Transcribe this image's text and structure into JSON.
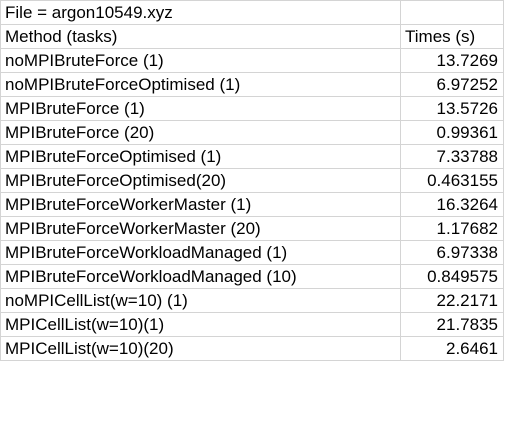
{
  "sheet": {
    "file_label": "File = argon10549.xyz",
    "file_value": "",
    "header": {
      "method": "Method (tasks)",
      "times": "Times (s)"
    },
    "rows": [
      {
        "method": "noMPIBruteForce (1)",
        "time": "13.7269"
      },
      {
        "method": "noMPIBruteForceOptimised (1)",
        "time": "6.97252"
      },
      {
        "method": "MPIBruteForce (1)",
        "time": "13.5726"
      },
      {
        "method": "MPIBruteForce (20)",
        "time": "0.99361"
      },
      {
        "method": "MPIBruteForceOptimised (1)",
        "time": "7.33788"
      },
      {
        "method": "MPIBruteForceOptimised(20)",
        "time": "0.463155"
      },
      {
        "method": "MPIBruteForceWorkerMaster (1)",
        "time": "16.3264"
      },
      {
        "method": "MPIBruteForceWorkerMaster (20)",
        "time": "1.17682"
      },
      {
        "method": "MPIBruteForceWorkloadManaged (1)",
        "time": "6.97338"
      },
      {
        "method": "MPIBruteForceWorkloadManaged (10)",
        "time": "0.849575"
      },
      {
        "method": "noMPICellList(w=10) (1)",
        "time": "22.2171"
      },
      {
        "method": "MPICellList(w=10)(1)",
        "time": "21.7835"
      },
      {
        "method": "MPICellList(w=10)(20)",
        "time": "2.6461"
      }
    ]
  }
}
